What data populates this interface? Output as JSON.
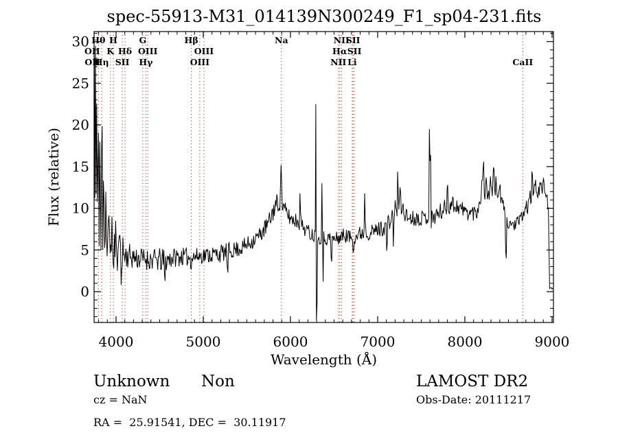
{
  "title": "spec-55913-M31_014139N300249_F1_sp04-231.fits",
  "axes": {
    "xlabel": "Wavelength (Å)",
    "ylabel": "Flux (relative)",
    "xticks": [
      4000,
      5000,
      6000,
      7000,
      8000,
      9000
    ],
    "yticks": [
      0,
      5,
      10,
      15,
      20,
      25,
      30
    ],
    "x_minor_step": 100,
    "y_minor_step": 1
  },
  "annotations": {
    "class_label": "Unknown",
    "subclass_label": "Non",
    "cz_text": "cz = NaN",
    "radec_text": "RA =  25.91541, DEC =  30.11917",
    "survey_text": "LAMOST DR2",
    "obsdate_text": "Obs-Date: 20111217"
  },
  "colors": {
    "spectrum": "#000000",
    "frame": "#000000",
    "marker_line": "#933024",
    "background": "#ffffff"
  },
  "chart_data": {
    "type": "line",
    "title": "spec-55913-M31_014139N300249_F1_sp04-231.fits",
    "xlabel": "Wavelength (Å)",
    "ylabel": "Flux (relative)",
    "x_range": [
      3748,
      9016
    ],
    "y_range": [
      -3.7,
      31.2
    ],
    "x_ticks": [
      4000,
      5000,
      6000,
      7000,
      8000,
      9000
    ],
    "y_ticks": [
      0,
      5,
      10,
      15,
      20,
      25,
      30
    ],
    "grid": false,
    "legend": "none",
    "sample_step_angstrom": 7,
    "noise_seed": 11,
    "envelope_w_flux_noise": [
      [
        3748,
        16,
        3
      ],
      [
        3800,
        11,
        3
      ],
      [
        3860,
        8,
        2.5
      ],
      [
        3920,
        6,
        2.2
      ],
      [
        3980,
        5,
        2
      ],
      [
        4060,
        4.5,
        1.8
      ],
      [
        4150,
        4.3,
        1.5
      ],
      [
        4250,
        4.0,
        1.4
      ],
      [
        4350,
        3.9,
        1.3
      ],
      [
        4450,
        3.8,
        1.4
      ],
      [
        4550,
        3.7,
        1.5
      ],
      [
        4650,
        4.1,
        1.2
      ],
      [
        4750,
        4.2,
        1.1
      ],
      [
        4850,
        4.1,
        1.1
      ],
      [
        4950,
        4.3,
        1.0
      ],
      [
        5050,
        4.4,
        1.0
      ],
      [
        5150,
        4.5,
        1.1
      ],
      [
        5250,
        4.7,
        1.1
      ],
      [
        5350,
        5.0,
        1.0
      ],
      [
        5450,
        5.3,
        1.0
      ],
      [
        5550,
        6.0,
        1.0
      ],
      [
        5650,
        6.8,
        1.0
      ],
      [
        5750,
        8.2,
        1.1
      ],
      [
        5820,
        10.2,
        1.3
      ],
      [
        5880,
        11.0,
        1.3
      ],
      [
        5930,
        9.8,
        1.1
      ],
      [
        6000,
        8.8,
        1.0
      ],
      [
        6080,
        8.5,
        1.0
      ],
      [
        6160,
        7.6,
        0.9
      ],
      [
        6240,
        6.9,
        0.9
      ],
      [
        6330,
        6.6,
        0.9
      ],
      [
        6420,
        6.4,
        0.9
      ],
      [
        6520,
        6.3,
        0.9
      ],
      [
        6620,
        6.8,
        0.9
      ],
      [
        6720,
        6.4,
        0.9
      ],
      [
        6820,
        7.1,
        1.0
      ],
      [
        6920,
        7.1,
        0.9
      ],
      [
        7020,
        7.5,
        1.0
      ],
      [
        7120,
        8.0,
        1.1
      ],
      [
        7200,
        9.8,
        1.3
      ],
      [
        7270,
        10.3,
        1.3
      ],
      [
        7340,
        8.9,
        1.0
      ],
      [
        7440,
        8.8,
        0.9
      ],
      [
        7540,
        8.9,
        0.9
      ],
      [
        7640,
        9.0,
        1.0
      ],
      [
        7740,
        9.7,
        1.1
      ],
      [
        7840,
        10.6,
        1.2
      ],
      [
        7940,
        10.1,
        1.0
      ],
      [
        8040,
        9.4,
        0.9
      ],
      [
        8140,
        9.6,
        1.1
      ],
      [
        8205,
        13.0,
        1.7
      ],
      [
        8260,
        12.0,
        1.5
      ],
      [
        8310,
        12.8,
        1.6
      ],
      [
        8360,
        12.5,
        1.5
      ],
      [
        8410,
        11.5,
        1.3
      ],
      [
        8445,
        9.8,
        1.0
      ],
      [
        8500,
        8.2,
        0.8
      ],
      [
        8560,
        8.0,
        0.8
      ],
      [
        8620,
        8.3,
        0.8
      ],
      [
        8670,
        9.3,
        0.9
      ],
      [
        8730,
        10.6,
        1.1
      ],
      [
        8790,
        12.3,
        1.2
      ],
      [
        8850,
        12.4,
        1.2
      ],
      [
        8900,
        12.6,
        1.1
      ],
      [
        8935,
        12.0,
        1.0
      ],
      [
        8955,
        10.3,
        0.6
      ],
      [
        8962,
        9.8,
        0.3
      ],
      [
        8966,
        4,
        0.2
      ],
      [
        8971,
        0.35,
        0.12
      ],
      [
        9012,
        0.35,
        0.12
      ]
    ],
    "spikes_w_peak_halfwidth": [
      [
        3752,
        28,
        6
      ],
      [
        3760,
        7,
        5
      ],
      [
        3766,
        29.5,
        6
      ],
      [
        3774,
        8,
        5
      ],
      [
        3781,
        25,
        6
      ],
      [
        3788,
        6,
        5
      ],
      [
        3796,
        21,
        6
      ],
      [
        3806,
        5.5,
        5
      ],
      [
        3815,
        18,
        6
      ],
      [
        3828,
        5,
        5
      ],
      [
        3838,
        20.8,
        7
      ],
      [
        3848,
        5,
        5
      ],
      [
        3858,
        15,
        6
      ],
      [
        3872,
        4.5,
        5
      ],
      [
        3884,
        12,
        6
      ],
      [
        3900,
        3.8,
        5
      ],
      [
        3915,
        10,
        6
      ],
      [
        3935,
        3.2,
        5
      ],
      [
        3955,
        9,
        6
      ],
      [
        3975,
        2.8,
        5
      ],
      [
        3995,
        8.5,
        6
      ],
      [
        4015,
        2.5,
        5
      ],
      [
        4040,
        7.5,
        6
      ],
      [
        4058,
        0.8,
        5
      ],
      [
        4080,
        6.5,
        5
      ],
      [
        4560,
        1.3,
        8
      ],
      [
        4860,
        2.7,
        8
      ],
      [
        5280,
        2.3,
        8
      ],
      [
        5893,
        15.2,
        9
      ],
      [
        6110,
        11.8,
        8
      ],
      [
        6292,
        22.5,
        8
      ],
      [
        6301,
        -3.4,
        8
      ],
      [
        6318,
        6.3,
        6
      ],
      [
        6363,
        13.0,
        8
      ],
      [
        6374,
        1.2,
        8
      ],
      [
        6470,
        3.6,
        8
      ],
      [
        6720,
        4.7,
        9
      ],
      [
        6852,
        11.8,
        8
      ],
      [
        7105,
        4.9,
        8
      ],
      [
        7180,
        5.4,
        8
      ],
      [
        7230,
        14.4,
        8
      ],
      [
        7258,
        12.5,
        8
      ],
      [
        7594,
        19.5,
        8
      ],
      [
        7604,
        17.0,
        7
      ],
      [
        7615,
        7.6,
        6
      ],
      [
        7800,
        12.8,
        8
      ],
      [
        8215,
        15.6,
        8
      ],
      [
        8330,
        14.9,
        8
      ],
      [
        8472,
        4.0,
        8
      ],
      [
        8772,
        14.4,
        8
      ]
    ],
    "line_markers": [
      {
        "label": "OII",
        "wavelength": 3727,
        "row": 2
      },
      {
        "label": "OII",
        "wavelength": 3730,
        "row": 3
      },
      {
        "label": "Hθ",
        "wavelength": 3798,
        "row": 1
      },
      {
        "label": "Hη",
        "wavelength": 3836,
        "row": 3
      },
      {
        "label": "K",
        "wavelength": 3935,
        "row": 2
      },
      {
        "label": "H",
        "wavelength": 3969,
        "row": 1
      },
      {
        "label": "SII",
        "wavelength": 4072,
        "row": 3
      },
      {
        "label": "Hδ",
        "wavelength": 4103,
        "row": 2
      },
      {
        "label": "G",
        "wavelength": 4306,
        "row": 1
      },
      {
        "label": "Hγ",
        "wavelength": 4342,
        "row": 3
      },
      {
        "label": "OIII",
        "wavelength": 4364,
        "row": 2
      },
      {
        "label": "Hβ",
        "wavelength": 4863,
        "row": 1
      },
      {
        "label": "OIII",
        "wavelength": 4960,
        "row": 3
      },
      {
        "label": "OIII",
        "wavelength": 5008,
        "row": 2
      },
      {
        "label": "Na",
        "wavelength": 5896,
        "row": 1
      },
      {
        "label": "NII",
        "wavelength": 6550,
        "row": 3
      },
      {
        "label": "Hα",
        "wavelength": 6565,
        "row": 2
      },
      {
        "label": "NII",
        "wavelength": 6585,
        "row": 1
      },
      {
        "label": "Li",
        "wavelength": 6708,
        "row": 3
      },
      {
        "label": "SII",
        "wavelength": 6718,
        "row": 1
      },
      {
        "label": "SII",
        "wavelength": 6733,
        "row": 2
      },
      {
        "label": "CaII",
        "wavelength": 8664,
        "row": 3
      }
    ]
  }
}
